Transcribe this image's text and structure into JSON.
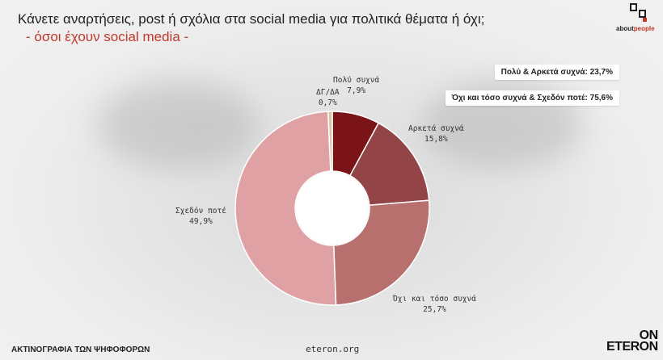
{
  "header": {
    "title": "Κάνετε αναρτήσεις, post ή σχόλια στα social media για πολιτικά θέματα ή όχι;",
    "subtitle": "- όσοι έχουν social media  -"
  },
  "logo": {
    "text_a": "about",
    "text_b": "people"
  },
  "summary": {
    "line1": "Πολύ & Αρκετά συχνά: 23,7%",
    "line2": "Όχι και τόσο συχνά & Σχεδόν ποτέ: 75,6%"
  },
  "chart_data": {
    "type": "pie",
    "donut": true,
    "categories": [
      "Πολύ συχνά",
      "Αρκετά συχνά",
      "Όχι και τόσο συχνά",
      "Σχεδόν ποτέ",
      "ΔΓ/ΔΑ"
    ],
    "values": [
      7.9,
      15.8,
      25.7,
      49.9,
      0.7
    ],
    "value_labels": [
      "7,9%",
      "15,8%",
      "25,7%",
      "49,9%",
      "0,7%"
    ],
    "colors": [
      "#7b1416",
      "#924446",
      "#b8706e",
      "#dfa1a4",
      "#d9c6a6"
    ],
    "start_angle_deg": 0,
    "direction": "clockwise"
  },
  "footer": {
    "left": "ΑΚΤΙΝΟΓΡΑΦΙΑ ΤΩΝ ΨΗΦΟΦΟΡΩΝ",
    "center": "eteron.org",
    "brand_line1": "ON",
    "brand_line2": "ETERON"
  }
}
